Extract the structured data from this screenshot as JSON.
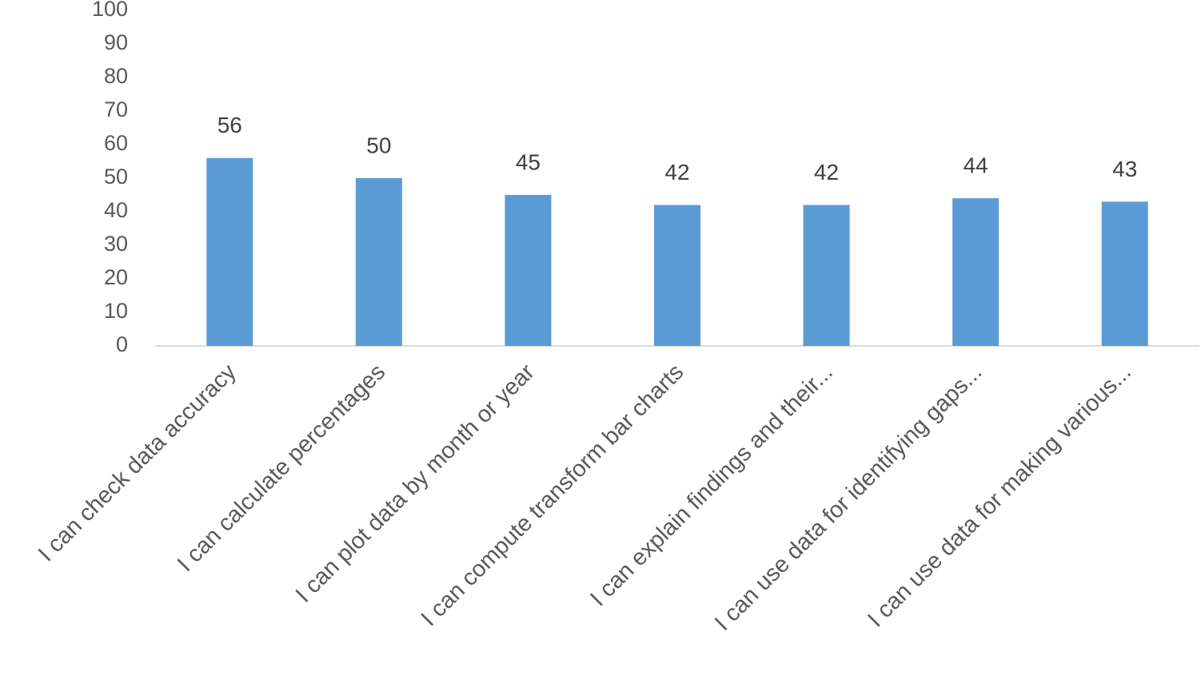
{
  "chart_data": {
    "type": "bar",
    "categories": [
      "I can check data accuracy",
      "I can calculate percentages",
      "I can plot data by month or year",
      "I can compute transform bar charts",
      "I can explain findings and their...",
      "I can use data for identifying gaps...",
      "I can use data for making various..."
    ],
    "values": [
      56,
      50,
      45,
      42,
      42,
      44,
      43
    ],
    "color": "#5b9bd5",
    "ylim": [
      0,
      100
    ],
    "yticks": [
      0,
      10,
      20,
      30,
      40,
      50,
      60,
      70,
      80,
      90,
      100
    ],
    "grid": false
  }
}
